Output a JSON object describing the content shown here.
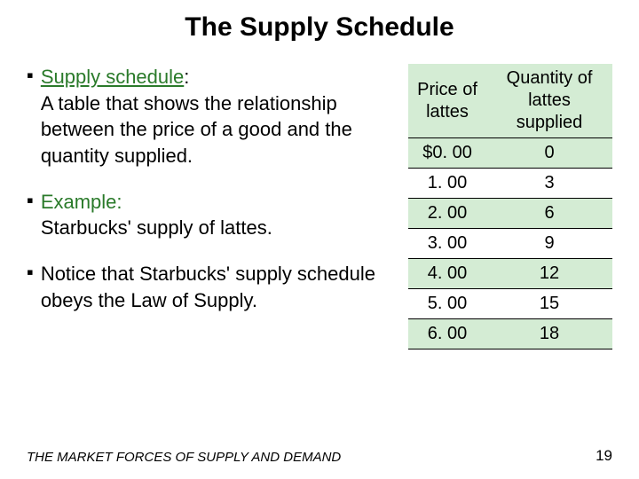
{
  "title": "The Supply Schedule",
  "bullets": [
    {
      "lead": "Supply schedule",
      "lead_underline": true,
      "rest": ":\nA table that shows the relationship between the price of a good and the quantity supplied."
    },
    {
      "lead": "Example:",
      "lead_underline": false,
      "rest": "\nStarbucks' supply of lattes."
    },
    {
      "lead": "",
      "lead_underline": false,
      "rest": "Notice that Starbucks' supply schedule obeys the Law of Supply."
    }
  ],
  "table": {
    "columns": [
      "Price of lattes",
      "Quantity of lattes supplied"
    ],
    "header_bg": "#d4ecd4",
    "highlight_bg": "#d4ecd4",
    "border_color": "#000000",
    "rows": [
      {
        "price": "$0. 00",
        "qty": "0",
        "highlight": true
      },
      {
        "price": "1. 00",
        "qty": "3",
        "highlight": false
      },
      {
        "price": "2. 00",
        "qty": "6",
        "highlight": true
      },
      {
        "price": "3. 00",
        "qty": "9",
        "highlight": false
      },
      {
        "price": "4. 00",
        "qty": "12",
        "highlight": true
      },
      {
        "price": "5. 00",
        "qty": "15",
        "highlight": false
      },
      {
        "price": "6. 00",
        "qty": "18",
        "highlight": true
      }
    ]
  },
  "footer": "THE MARKET FORCES OF SUPPLY AND DEMAND",
  "page_number": "19",
  "colors": {
    "lead_green": "#2a7a2a",
    "background": "#ffffff"
  }
}
